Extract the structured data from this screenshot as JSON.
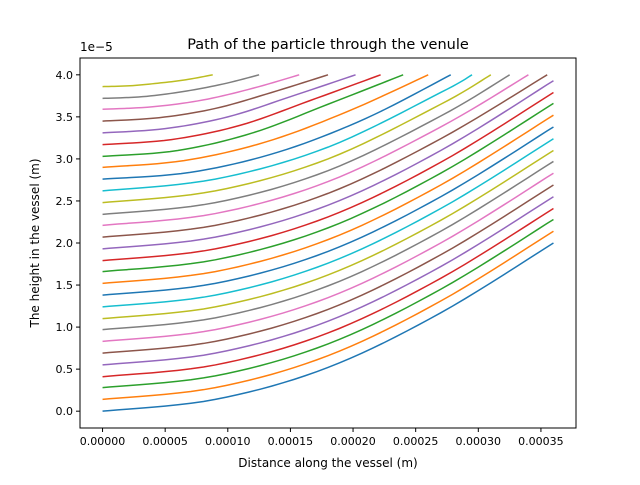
{
  "chart_data": {
    "type": "line",
    "title": "Path of the particle through the venule",
    "xlabel": "Distance along the vessel (m)",
    "ylabel": "The height in the vessel (m)",
    "y_offset_label": "1e−5",
    "xlim": [
      -1.8e-05,
      0.000378
    ],
    "ylim": [
      -2e-06,
      4.2e-05
    ],
    "grid": false,
    "legend": "none",
    "x_ticks": [
      {
        "value": 0.0,
        "label": "0.00000"
      },
      {
        "value": 5e-05,
        "label": "0.00005"
      },
      {
        "value": 0.0001,
        "label": "0.00010"
      },
      {
        "value": 0.00015,
        "label": "0.00015"
      },
      {
        "value": 0.0002,
        "label": "0.00020"
      },
      {
        "value": 0.00025,
        "label": "0.00025"
      },
      {
        "value": 0.0003,
        "label": "0.00030"
      },
      {
        "value": 0.00035,
        "label": "0.00035"
      }
    ],
    "y_ticks": [
      {
        "value": 0.0,
        "label": "0.0"
      },
      {
        "value": 5e-06,
        "label": "0.5"
      },
      {
        "value": 1e-05,
        "label": "1.0"
      },
      {
        "value": 1.5e-05,
        "label": "1.5"
      },
      {
        "value": 2e-05,
        "label": "2.0"
      },
      {
        "value": 2.5e-05,
        "label": "2.5"
      },
      {
        "value": 3e-05,
        "label": "3.0"
      },
      {
        "value": 3.5e-05,
        "label": "3.5"
      },
      {
        "value": 4e-05,
        "label": "4.0"
      }
    ],
    "series": [
      {
        "color": "#1f77b4",
        "x": [
          0,
          9e-05,
          0.00018,
          0.00027,
          0.00036
        ],
        "y": [
          0.0,
          1.4e-06,
          5.2e-06,
          1.17e-05,
          2e-05
        ]
      },
      {
        "color": "#ff7f0e",
        "x": [
          0,
          9e-05,
          0.00018,
          0.00027,
          0.00036
        ],
        "y": [
          1.4e-06,
          2.8e-06,
          6.6e-06,
          1.31e-05,
          2.14e-05
        ]
      },
      {
        "color": "#2ca02c",
        "x": [
          0,
          9e-05,
          0.00018,
          0.00027,
          0.00036
        ],
        "y": [
          2.8e-06,
          4.2e-06,
          8e-06,
          1.45e-05,
          2.28e-05
        ]
      },
      {
        "color": "#d62728",
        "x": [
          0,
          9e-05,
          0.00018,
          0.00027,
          0.00036
        ],
        "y": [
          4.1e-06,
          5.5e-06,
          9.3e-06,
          1.58e-05,
          2.41e-05
        ]
      },
      {
        "color": "#9467bd",
        "x": [
          0,
          9e-05,
          0.00018,
          0.00027,
          0.00036
        ],
        "y": [
          5.5e-06,
          6.9e-06,
          1.07e-05,
          1.72e-05,
          2.55e-05
        ]
      },
      {
        "color": "#8c564b",
        "x": [
          0,
          9e-05,
          0.00018,
          0.00027,
          0.00036
        ],
        "y": [
          6.9e-06,
          8.3e-06,
          1.21e-05,
          1.86e-05,
          2.69e-05
        ]
      },
      {
        "color": "#e377c2",
        "x": [
          0,
          9e-05,
          0.00018,
          0.00027,
          0.00036
        ],
        "y": [
          8.3e-06,
          9.7e-06,
          1.35e-05,
          2e-05,
          2.83e-05
        ]
      },
      {
        "color": "#7f7f7f",
        "x": [
          0,
          9e-05,
          0.00018,
          0.00027,
          0.00036
        ],
        "y": [
          9.7e-06,
          1.11e-05,
          1.49e-05,
          2.14e-05,
          2.97e-05
        ]
      },
      {
        "color": "#bcbd22",
        "x": [
          0,
          9e-05,
          0.00018,
          0.00027,
          0.00036
        ],
        "y": [
          1.1e-05,
          1.24e-05,
          1.62e-05,
          2.27e-05,
          3.1e-05
        ]
      },
      {
        "color": "#17becf",
        "x": [
          0,
          9e-05,
          0.00018,
          0.00027,
          0.00036
        ],
        "y": [
          1.24e-05,
          1.38e-05,
          1.76e-05,
          2.41e-05,
          3.24e-05
        ]
      },
      {
        "color": "#1f77b4",
        "x": [
          0,
          9e-05,
          0.00018,
          0.00027,
          0.00036
        ],
        "y": [
          1.38e-05,
          1.52e-05,
          1.9e-05,
          2.55e-05,
          3.38e-05
        ]
      },
      {
        "color": "#ff7f0e",
        "x": [
          0,
          9e-05,
          0.00018,
          0.00027,
          0.00036
        ],
        "y": [
          1.52e-05,
          1.66e-05,
          2.04e-05,
          2.69e-05,
          3.52e-05
        ]
      },
      {
        "color": "#2ca02c",
        "x": [
          0,
          9e-05,
          0.00018,
          0.00027,
          0.00036
        ],
        "y": [
          1.66e-05,
          1.8e-05,
          2.18e-05,
          2.83e-05,
          3.66e-05
        ]
      },
      {
        "color": "#d62728",
        "x": [
          0,
          9e-05,
          0.00018,
          0.00027,
          0.00036
        ],
        "y": [
          1.79e-05,
          1.93e-05,
          2.31e-05,
          2.96e-05,
          3.79e-05
        ]
      },
      {
        "color": "#9467bd",
        "x": [
          0,
          9e-05,
          0.00018,
          0.00027,
          0.00036
        ],
        "y": [
          1.93e-05,
          2.07e-05,
          2.45e-05,
          3.1e-05,
          3.93e-05
        ]
      },
      {
        "color": "#8c564b",
        "x": [
          0,
          9e-05,
          0.00018,
          0.00027,
          0.000355
        ],
        "y": [
          2.07e-05,
          2.21e-05,
          2.59e-05,
          3.24e-05,
          4e-05
        ]
      },
      {
        "color": "#e377c2",
        "x": [
          0,
          9e-05,
          0.00018,
          0.00027,
          0.00034
        ],
        "y": [
          2.21e-05,
          2.35e-05,
          2.73e-05,
          3.38e-05,
          4e-05
        ]
      },
      {
        "color": "#7f7f7f",
        "x": [
          0,
          9e-05,
          0.00018,
          0.00027,
          0.000325
        ],
        "y": [
          2.34e-05,
          2.48e-05,
          2.86e-05,
          3.51e-05,
          4e-05
        ]
      },
      {
        "color": "#bcbd22",
        "x": [
          0,
          9e-05,
          0.00018,
          0.00027,
          0.00031
        ],
        "y": [
          2.48e-05,
          2.62e-05,
          3e-05,
          3.65e-05,
          4e-05
        ]
      },
      {
        "color": "#17becf",
        "x": [
          0,
          9e-05,
          0.00018,
          0.00027,
          0.000295
        ],
        "y": [
          2.62e-05,
          2.76e-05,
          3.14e-05,
          3.79e-05,
          4e-05
        ]
      },
      {
        "color": "#1f77b4",
        "x": [
          0,
          7e-05,
          0.00014,
          0.00021,
          0.000278
        ],
        "y": [
          2.76e-05,
          2.84e-05,
          3.08e-05,
          3.48e-05,
          4e-05
        ]
      },
      {
        "color": "#ff7f0e",
        "x": [
          0,
          6.5e-05,
          0.00013,
          0.000195,
          0.00026
        ],
        "y": [
          2.9e-05,
          2.98e-05,
          3.2e-05,
          3.56e-05,
          4e-05
        ]
      },
      {
        "color": "#2ca02c",
        "x": [
          0,
          6e-05,
          0.00012,
          0.00018,
          0.00024
        ],
        "y": [
          3.03e-05,
          3.1e-05,
          3.31e-05,
          3.65e-05,
          4e-05
        ]
      },
      {
        "color": "#d62728",
        "x": [
          0,
          5.5e-05,
          0.00011,
          0.000165,
          0.000222
        ],
        "y": [
          3.17e-05,
          3.23e-05,
          3.4e-05,
          3.69e-05,
          4e-05
        ]
      },
      {
        "color": "#9467bd",
        "x": [
          0,
          5e-05,
          0.0001,
          0.00015,
          0.000202
        ],
        "y": [
          3.31e-05,
          3.36e-05,
          3.5e-05,
          3.74e-05,
          4e-05
        ]
      },
      {
        "color": "#8c564b",
        "x": [
          0,
          4.5e-05,
          9e-05,
          0.000135,
          0.00018
        ],
        "y": [
          3.45e-05,
          3.49e-05,
          3.6e-05,
          3.79e-05,
          4e-05
        ]
      },
      {
        "color": "#e377c2",
        "x": [
          0,
          4e-05,
          8e-05,
          0.00012,
          0.000157
        ],
        "y": [
          3.59e-05,
          3.62e-05,
          3.7e-05,
          3.84e-05,
          4e-05
        ]
      },
      {
        "color": "#7f7f7f",
        "x": [
          0,
          3.2e-05,
          6.4e-05,
          9.6e-05,
          0.000125
        ],
        "y": [
          3.72e-05,
          3.74e-05,
          3.8e-05,
          3.89e-05,
          4e-05
        ]
      },
      {
        "color": "#bcbd22",
        "x": [
          0,
          2.2e-05,
          4.4e-05,
          6.6e-05,
          8.8e-05
        ],
        "y": [
          3.86e-05,
          3.87e-05,
          3.9e-05,
          3.94e-05,
          4e-05
        ]
      }
    ]
  }
}
